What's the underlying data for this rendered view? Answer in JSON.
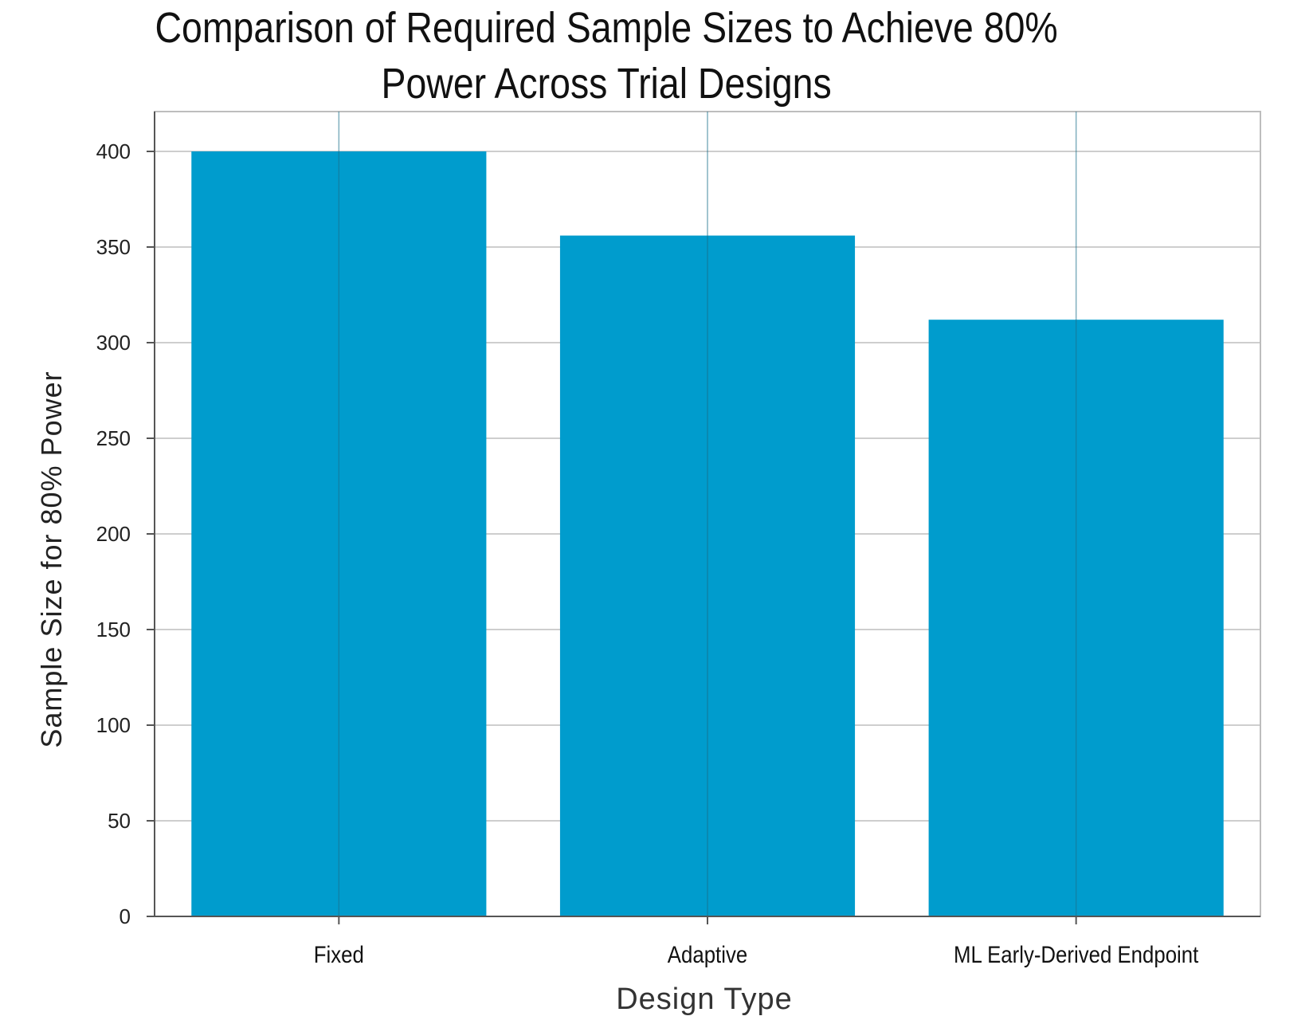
{
  "chart_data": {
    "type": "bar",
    "title": "Comparison of Required Sample Sizes to Achieve 80% Power Across Trial Designs",
    "title_lines": [
      "Comparison of Required Sample Sizes to Achieve 80%",
      "Power Across Trial Designs"
    ],
    "xlabel": "Design Type",
    "ylabel": "Sample Size for 80% Power",
    "categories": [
      "Fixed",
      "Adaptive",
      "ML Early-Derived Endpoint"
    ],
    "values": [
      400,
      356,
      312
    ],
    "ylim": [
      0,
      420
    ],
    "yticks": [
      0,
      50,
      100,
      150,
      200,
      250,
      300,
      350,
      400
    ],
    "ytick_labels": [
      "0",
      "50",
      "100",
      "150",
      "200",
      "250",
      "300",
      "350",
      "400"
    ],
    "grid": true,
    "legend": "none",
    "colors": {
      "bar": "#009ccd",
      "grid": "#bdbdbd",
      "axis": "#555555",
      "text": "#111111"
    }
  }
}
